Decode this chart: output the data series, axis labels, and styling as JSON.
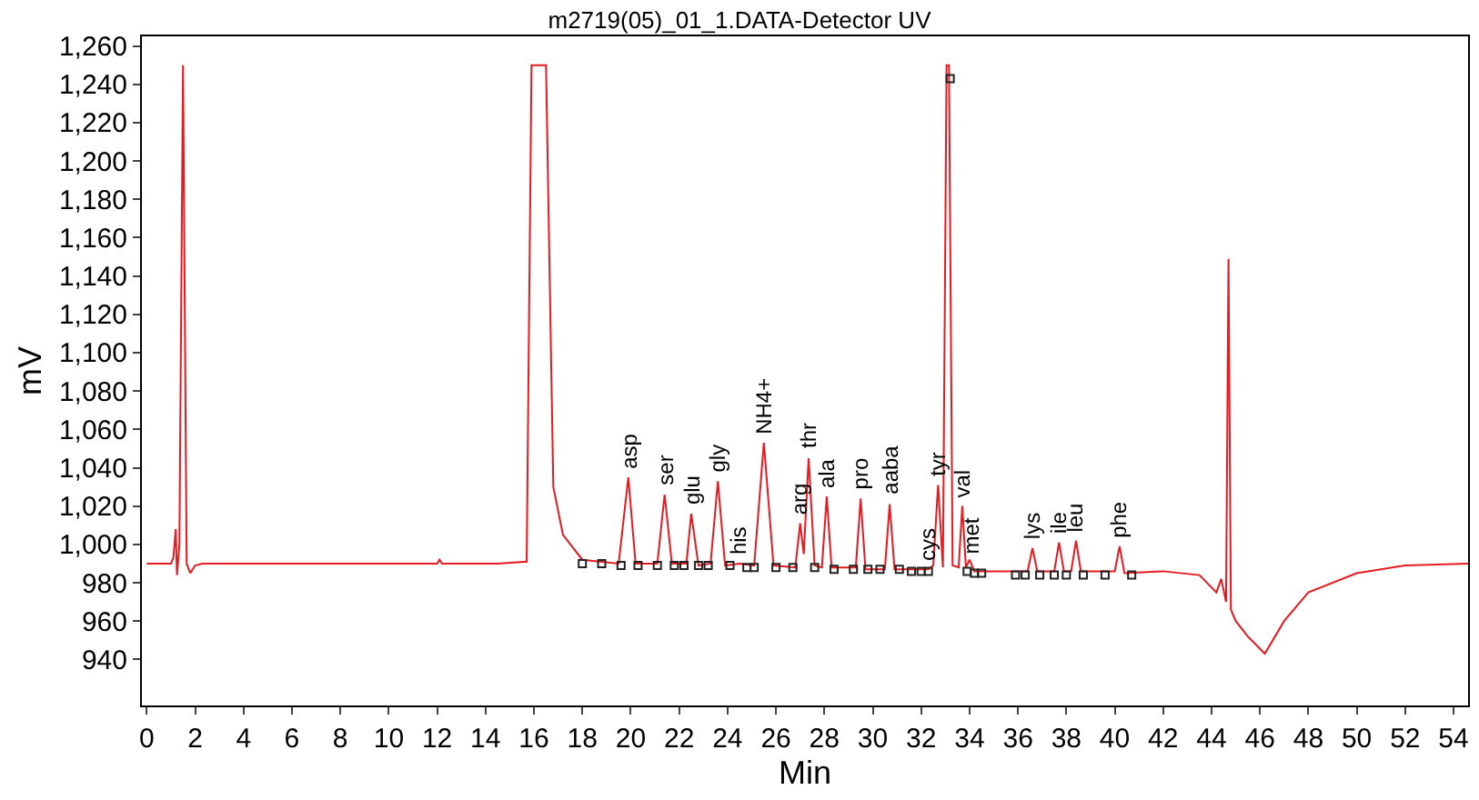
{
  "chart_data": {
    "type": "line",
    "title": "m2719(05)_01_1.DATA-Detector UV",
    "xlabel": "Min",
    "ylabel": "mV",
    "xlim": [
      -0.2,
      54.6
    ],
    "ylim": [
      916,
      1265
    ],
    "xticks": [
      0,
      2,
      4,
      6,
      8,
      10,
      12,
      14,
      16,
      18,
      20,
      22,
      24,
      26,
      28,
      30,
      32,
      34,
      36,
      38,
      40,
      42,
      44,
      46,
      48,
      50,
      52,
      54
    ],
    "yticks": [
      940,
      960,
      980,
      {
        "value": 1000,
        "label": "1,000"
      },
      {
        "value": 1020,
        "label": "1,020"
      },
      {
        "value": 1040,
        "label": "1,040"
      },
      {
        "value": 1060,
        "label": "1,060"
      },
      {
        "value": 1080,
        "label": "1,080"
      },
      {
        "value": 1100,
        "label": "1,100"
      },
      {
        "value": 1120,
        "label": "1,120"
      },
      {
        "value": 1140,
        "label": "1,140"
      },
      {
        "value": 1160,
        "label": "1,160"
      },
      {
        "value": 1180,
        "label": "1,180"
      },
      {
        "value": 1200,
        "label": "1,200"
      },
      {
        "value": 1220,
        "label": "1,220"
      },
      {
        "value": 1240,
        "label": "1,240"
      },
      {
        "value": 1260,
        "label": "1,260"
      }
    ],
    "series": [
      {
        "color": "#e8191f",
        "marker": "none",
        "x": [
          0,
          1.0,
          1.1,
          1.2,
          1.25,
          1.35,
          1.5,
          1.65,
          1.8,
          2.0,
          2.3,
          12,
          12.1,
          12.2,
          14.5,
          15.7,
          15.9,
          16.5,
          16.8,
          17.2,
          18,
          19.5,
          19.9,
          20.2,
          21.1,
          21.4,
          21.7,
          22.3,
          22.5,
          22.8,
          23.3,
          23.6,
          23.9,
          24.5,
          25.1,
          25.5,
          25.9,
          26.8,
          27.0,
          27.15,
          27.35,
          27.6,
          27.9,
          28.1,
          28.3,
          29.3,
          29.5,
          29.7,
          30.5,
          30.7,
          30.9,
          32.3,
          32.5,
          32.7,
          32.9,
          33.05,
          33.15,
          33.3,
          33.55,
          33.7,
          33.85,
          34.0,
          34.2,
          36.4,
          36.6,
          36.8,
          37.5,
          37.7,
          37.9,
          38.2,
          38.4,
          38.6,
          40.0,
          40.2,
          40.4,
          42,
          43.5,
          44.2,
          44.4,
          44.6,
          44.7,
          44.8,
          45.0,
          45.5,
          46.2,
          47,
          48,
          50,
          52,
          54.6
        ],
        "values": [
          990,
          990,
          993,
          1008,
          984,
          1000,
          1250,
          990,
          985,
          989,
          990,
          990,
          992,
          990,
          990,
          991,
          1250,
          1250,
          1030,
          1005,
          992,
          990,
          1035,
          990,
          990,
          1026,
          990,
          990,
          1016,
          989,
          990,
          1033,
          989,
          990,
          989,
          1053,
          989,
          988,
          1011,
          995,
          1045,
          989,
          988,
          1025,
          988,
          988,
          1024,
          987,
          987,
          1021,
          987,
          987,
          989,
          1031,
          988,
          1250,
          1250,
          989,
          988,
          1020,
          988,
          992,
          986,
          986,
          998,
          986,
          986,
          1001,
          986,
          986,
          1002,
          986,
          986,
          999,
          985,
          986,
          984,
          975,
          982,
          970,
          1149,
          966,
          960,
          952,
          943,
          960,
          975,
          985,
          989,
          990
        ]
      },
      {
        "type": "scatter",
        "color": "#222222",
        "marker": "square",
        "x": [
          18.0,
          18.8,
          19.6,
          20.3,
          21.1,
          21.8,
          22.2,
          22.8,
          23.2,
          24.1,
          24.8,
          25.1,
          26.0,
          26.7,
          27.6,
          28.4,
          29.2,
          29.8,
          30.3,
          31.1,
          31.6,
          32.0,
          32.3,
          33.2,
          33.9,
          34.2,
          34.5,
          35.9,
          36.3,
          36.9,
          37.5,
          38.0,
          38.7,
          39.6,
          40.7
        ],
        "values": [
          990,
          990,
          989,
          989,
          989,
          989,
          989,
          989,
          989,
          989,
          988,
          988,
          988,
          988,
          988,
          987,
          987,
          987,
          987,
          987,
          986,
          986,
          986,
          1243,
          986,
          985,
          985,
          984,
          984,
          984,
          984,
          984,
          984,
          984,
          984
        ]
      }
    ],
    "annotations": [
      {
        "text": "asp",
        "x": 19.9,
        "y": 1035
      },
      {
        "text": "ser",
        "x": 21.4,
        "y": 1026
      },
      {
        "text": "glu",
        "x": 22.5,
        "y": 1016
      },
      {
        "text": "gly",
        "x": 23.6,
        "y": 1033
      },
      {
        "text": "his",
        "x": 24.5,
        "y": 990
      },
      {
        "text": "NH4+",
        "x": 25.5,
        "y": 1053
      },
      {
        "text": "arg",
        "x": 27.0,
        "y": 1011
      },
      {
        "text": "thr",
        "x": 27.35,
        "y": 1045
      },
      {
        "text": "ala",
        "x": 28.1,
        "y": 1025
      },
      {
        "text": "pro",
        "x": 29.5,
        "y": 1024
      },
      {
        "text": "aaba",
        "x": 30.7,
        "y": 1021
      },
      {
        "text": "cys",
        "x": 32.3,
        "y": 987
      },
      {
        "text": "tyr",
        "x": 32.7,
        "y": 1031
      },
      {
        "text": "val",
        "x": 33.7,
        "y": 1020
      },
      {
        "text": "met",
        "x": 34.1,
        "y": 990
      },
      {
        "text": "lys",
        "x": 36.6,
        "y": 998
      },
      {
        "text": "ile",
        "x": 37.7,
        "y": 1001
      },
      {
        "text": "leu",
        "x": 38.4,
        "y": 1002
      },
      {
        "text": "phe",
        "x": 40.2,
        "y": 999
      }
    ]
  }
}
